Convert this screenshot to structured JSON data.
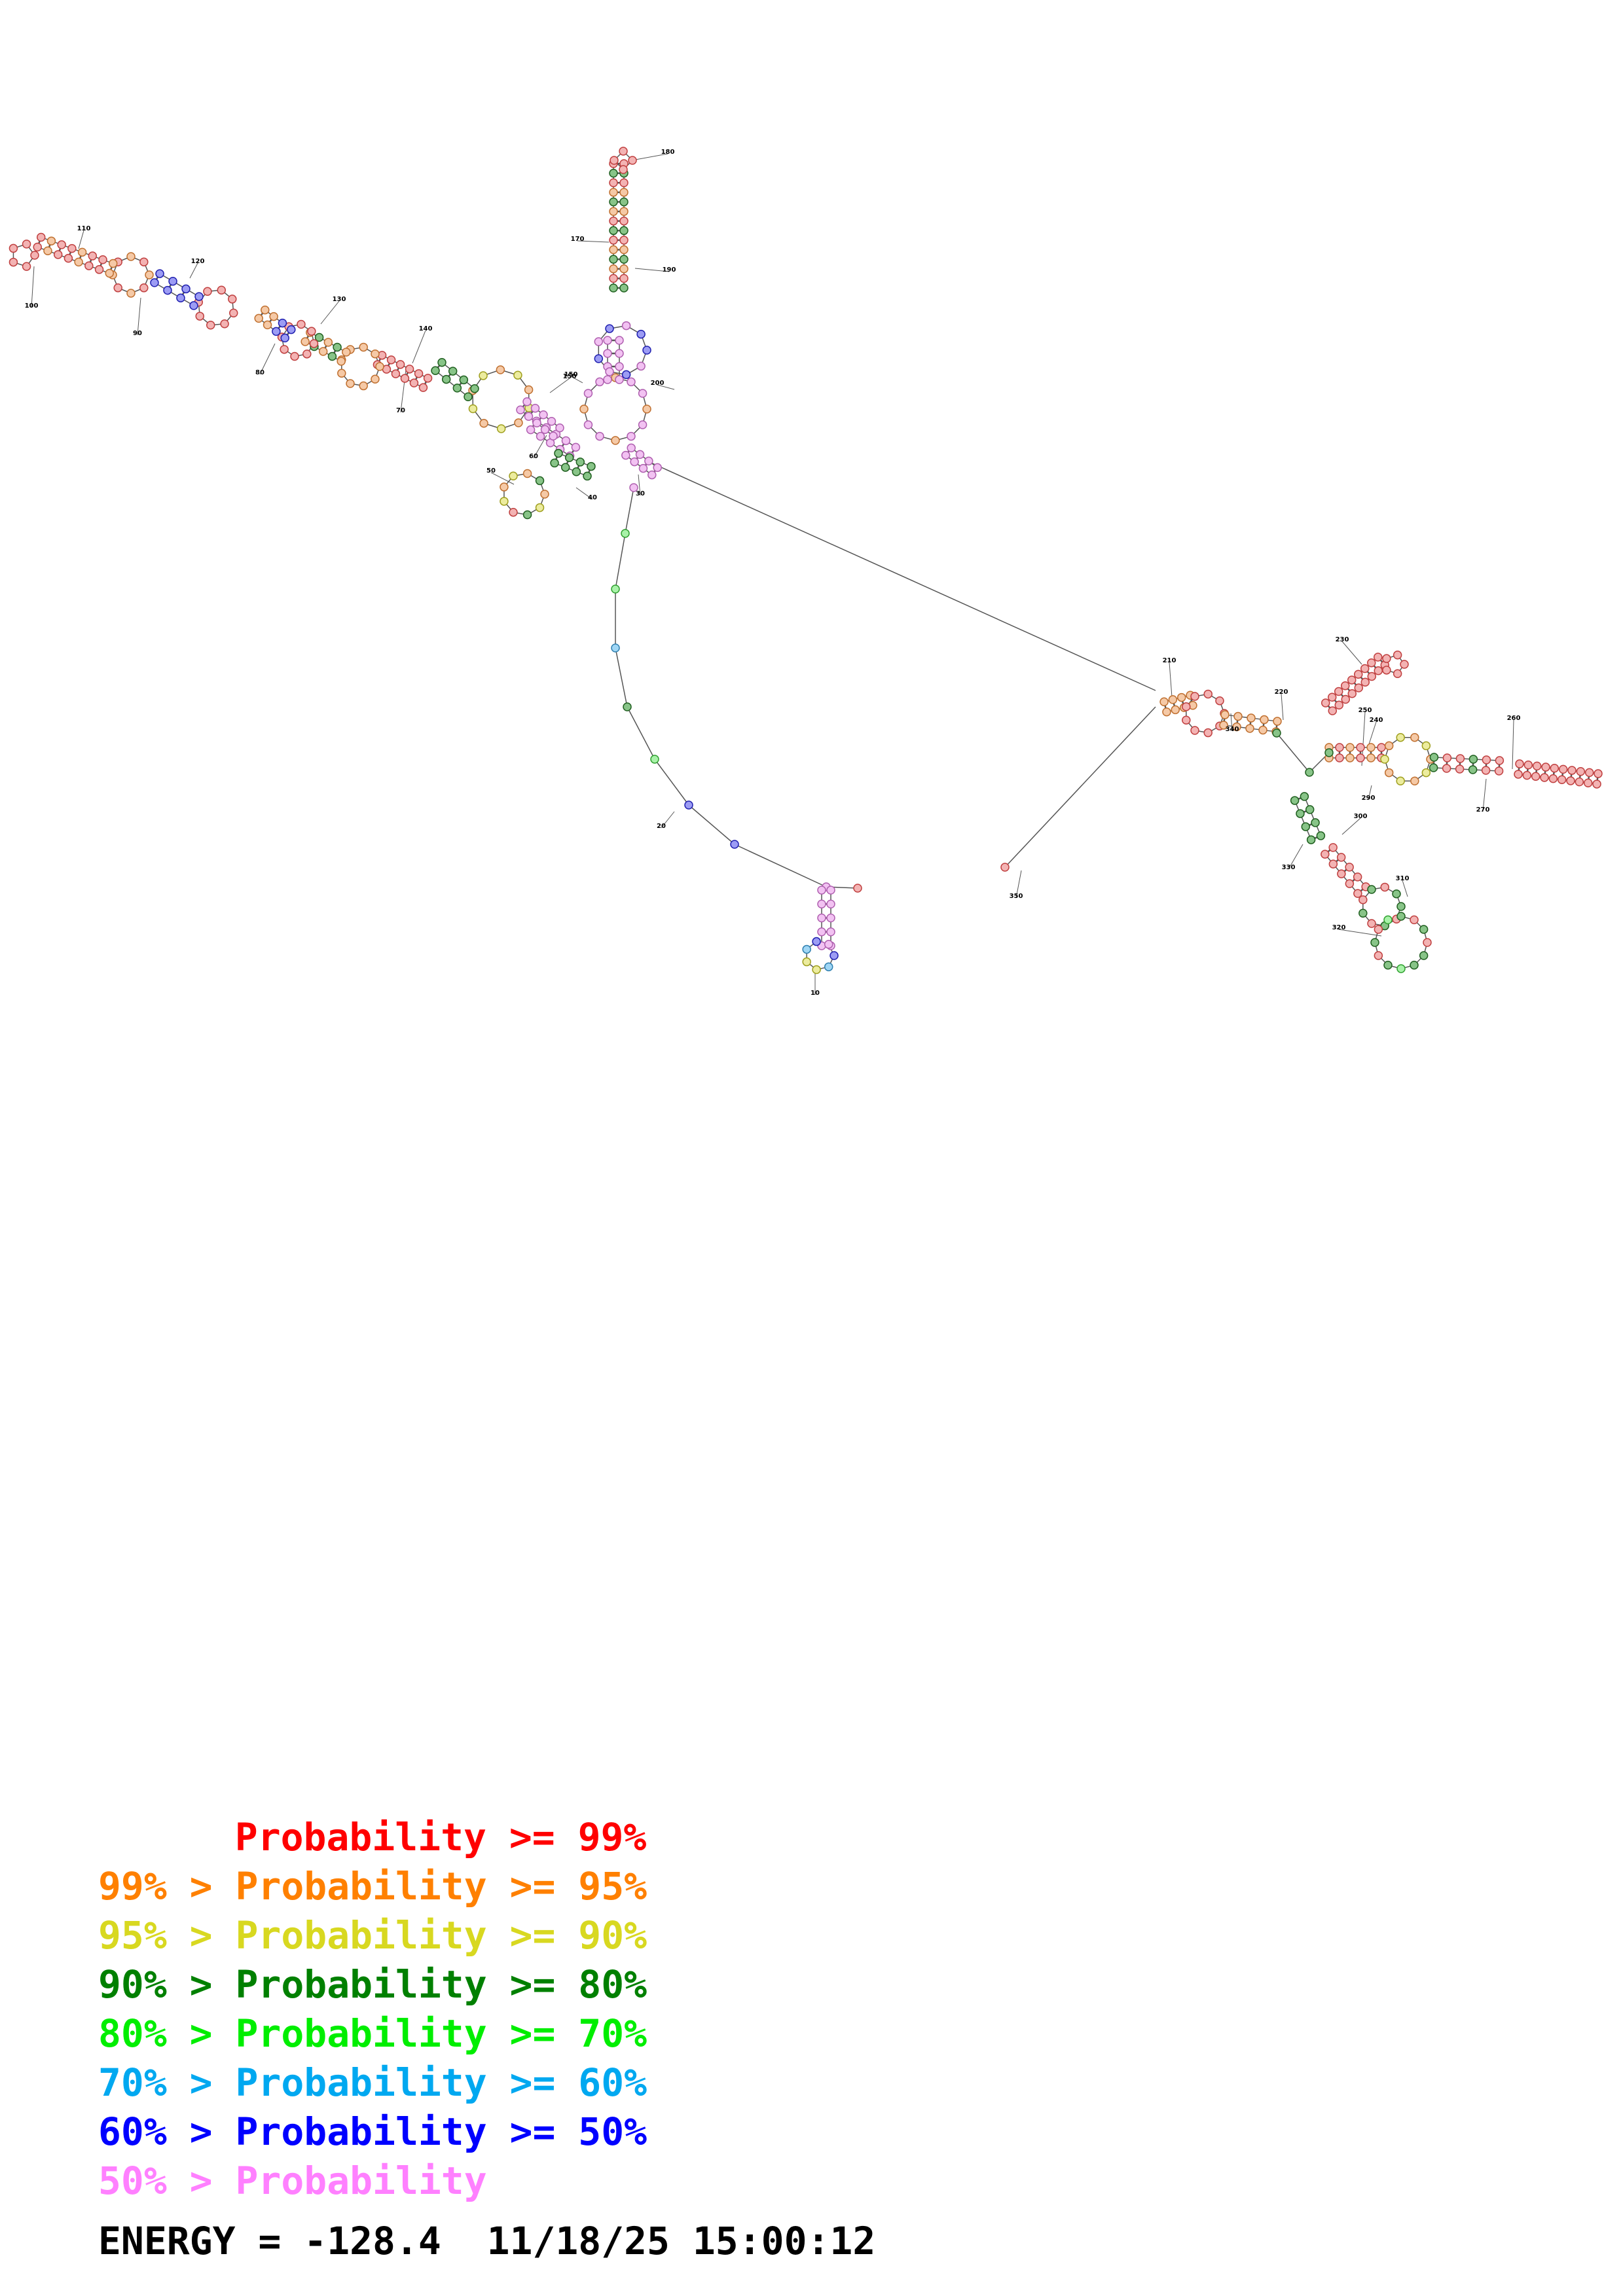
{
  "colors": {
    "p99": "#ff0000",
    "p95": "#ff8000",
    "p90": "#d8d820",
    "p80": "#008000",
    "p70": "#00ee00",
    "p60": "#00a8f0",
    "p50": "#0000ff",
    "plow": "#ff80ff"
  },
  "residue_labels": [
    "10",
    "20",
    "30",
    "40",
    "50",
    "60",
    "70",
    "80",
    "90",
    "100",
    "110",
    "120",
    "130",
    "140",
    "150",
    "160",
    "170",
    "180",
    "190",
    "200",
    "210",
    "220",
    "230",
    "240",
    "250",
    "260",
    "270",
    "280",
    "290",
    "300",
    "310",
    "320",
    "330",
    "340",
    "350"
  ],
  "legend": [
    {
      "prefix": "",
      "label": "Probability >= 99%",
      "color_key": "p99"
    },
    {
      "prefix": "99% > ",
      "label": "Probability >= 95%",
      "color_key": "p95"
    },
    {
      "prefix": "95% > ",
      "label": "Probability >= 90%",
      "color_key": "p90"
    },
    {
      "prefix": "90% > ",
      "label": "Probability >= 80%",
      "color_key": "p80"
    },
    {
      "prefix": "80% > ",
      "label": "Probability >= 70%",
      "color_key": "p70"
    },
    {
      "prefix": "70% > ",
      "label": "Probability >= 60%",
      "color_key": "p60"
    },
    {
      "prefix": "60% > ",
      "label": "Probability >= 50%",
      "color_key": "p50"
    },
    {
      "prefix": "50% > ",
      "label": "Probability",
      "color_key": "plow"
    }
  ],
  "energy_line": "ENERGY = -128.4  11/18/25 15:00:12"
}
